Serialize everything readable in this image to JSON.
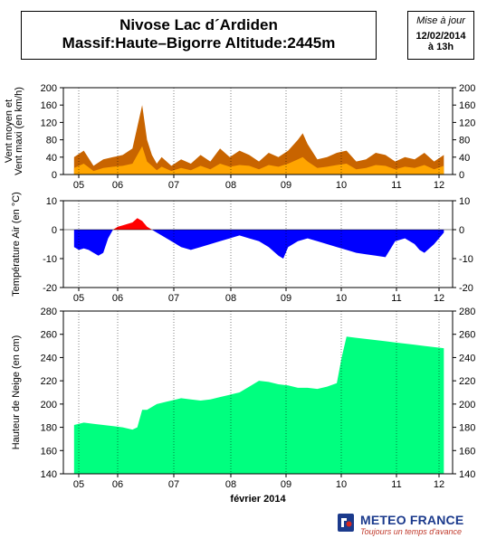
{
  "header": {
    "title_line1": "Nivose Lac d´Ardiden",
    "title_line2": "Massif:Haute–Bigorre Altitude:2445m"
  },
  "update": {
    "heading": "Mise à jour",
    "date": "12/02/2014",
    "time": "à 13h"
  },
  "logo": {
    "name": "METEO FRANCE",
    "slogan": "Toujours un temps d'avance"
  },
  "chart_data": [
    {
      "type": "area",
      "ylabel": "Vent moyen et\nVent maxi (en km/h)",
      "ylim": [
        0,
        200
      ],
      "yticks": [
        0,
        40,
        80,
        120,
        160,
        200
      ],
      "xticks": [
        "05",
        "06",
        "07",
        "08",
        "09",
        "10",
        "11",
        "12"
      ],
      "x_days": [
        4.8,
        5.0,
        5.2,
        5.4,
        5.6,
        5.8,
        6.0,
        6.1,
        6.2,
        6.3,
        6.4,
        6.5,
        6.6,
        6.8,
        7.0,
        7.2,
        7.4,
        7.6,
        7.8,
        8.0,
        8.2,
        8.4,
        8.6,
        8.8,
        9.0,
        9.2,
        9.4,
        9.5,
        9.6,
        9.8,
        10.0,
        10.2,
        10.4,
        10.6,
        10.8,
        11.0,
        11.2,
        11.4,
        11.6,
        11.8,
        12.0,
        12.2,
        12.4
      ],
      "series": [
        {
          "name": "Vent maxi",
          "color": "#c86400",
          "values": [
            40,
            55,
            20,
            35,
            40,
            45,
            60,
            110,
            160,
            80,
            45,
            25,
            40,
            20,
            35,
            25,
            45,
            30,
            60,
            40,
            55,
            45,
            30,
            50,
            40,
            55,
            80,
            95,
            70,
            35,
            40,
            50,
            55,
            30,
            35,
            50,
            45,
            30,
            40,
            35,
            50,
            30,
            45
          ]
        },
        {
          "name": "Vent moyen",
          "color": "#ffa500",
          "values": [
            15,
            25,
            8,
            15,
            18,
            20,
            25,
            45,
            65,
            30,
            20,
            10,
            18,
            8,
            15,
            10,
            20,
            12,
            25,
            18,
            22,
            20,
            12,
            22,
            18,
            25,
            35,
            40,
            30,
            15,
            18,
            22,
            25,
            12,
            15,
            22,
            20,
            12,
            18,
            15,
            22,
            12,
            20
          ]
        }
      ]
    },
    {
      "type": "area",
      "ylabel": "Température Air (en °C)",
      "ylim": [
        -20,
        10
      ],
      "yticks": [
        -20,
        -10,
        0,
        10
      ],
      "xticks": [
        "05",
        "06",
        "07",
        "08",
        "09",
        "10",
        "11",
        "12"
      ],
      "x_days": [
        4.8,
        4.9,
        5.0,
        5.1,
        5.2,
        5.3,
        5.4,
        5.5,
        5.6,
        5.7,
        5.8,
        5.9,
        6.0,
        6.1,
        6.2,
        6.3,
        6.4,
        6.5,
        6.6,
        6.8,
        7.0,
        7.2,
        7.4,
        7.6,
        7.8,
        8.0,
        8.2,
        8.4,
        8.6,
        8.8,
        9.0,
        9.1,
        9.2,
        9.4,
        9.6,
        9.8,
        10.0,
        10.2,
        10.4,
        10.6,
        10.8,
        11.0,
        11.2,
        11.4,
        11.6,
        11.8,
        11.9,
        12.0,
        12.2,
        12.4
      ],
      "series": [
        {
          "name": "Température",
          "positive_color": "#ff0000",
          "negative_color": "#0000ff",
          "values": [
            -6,
            -7,
            -6.5,
            -7,
            -8,
            -9,
            -8,
            -3,
            0,
            1,
            1.5,
            2,
            2.5,
            4,
            3,
            1,
            0,
            -1,
            -2,
            -4,
            -6,
            -7,
            -6,
            -5,
            -4,
            -3,
            -2,
            -3,
            -4,
            -6,
            -9,
            -10,
            -6,
            -4,
            -3,
            -4,
            -5,
            -6,
            -7,
            -8,
            -8.5,
            -9,
            -9.5,
            -4,
            -3,
            -5,
            -7,
            -8,
            -5,
            -1
          ]
        }
      ]
    },
    {
      "type": "area",
      "ylabel": "Hauteur de Neige (en cm)",
      "xlabel": "février 2014",
      "ylim": [
        140,
        280
      ],
      "yticks": [
        140,
        160,
        180,
        200,
        220,
        240,
        260,
        280
      ],
      "xticks": [
        "05",
        "06",
        "07",
        "08",
        "09",
        "10",
        "11",
        "12"
      ],
      "x_days": [
        4.8,
        5.0,
        5.2,
        5.4,
        5.6,
        5.8,
        6.0,
        6.1,
        6.2,
        6.3,
        6.5,
        6.7,
        6.9,
        7.0,
        7.2,
        7.4,
        7.6,
        7.8,
        8.0,
        8.2,
        8.4,
        8.6,
        8.8,
        9.0,
        9.2,
        9.4,
        9.6,
        9.8,
        10.0,
        10.2,
        10.3,
        10.4,
        10.6,
        10.8,
        11.0,
        11.2,
        11.4,
        11.6,
        11.8,
        12.0,
        12.2,
        12.4
      ],
      "series": [
        {
          "name": "Hauteur de neige",
          "color": "#00ff7f",
          "values": [
            182,
            184,
            183,
            182,
            181,
            180,
            178,
            180,
            195,
            195,
            200,
            202,
            204,
            205,
            204,
            203,
            204,
            206,
            208,
            210,
            215,
            220,
            219,
            217,
            216,
            214,
            214,
            213,
            215,
            218,
            240,
            258,
            257,
            256,
            255,
            254,
            253,
            252,
            251,
            250,
            249,
            248
          ]
        }
      ]
    }
  ]
}
